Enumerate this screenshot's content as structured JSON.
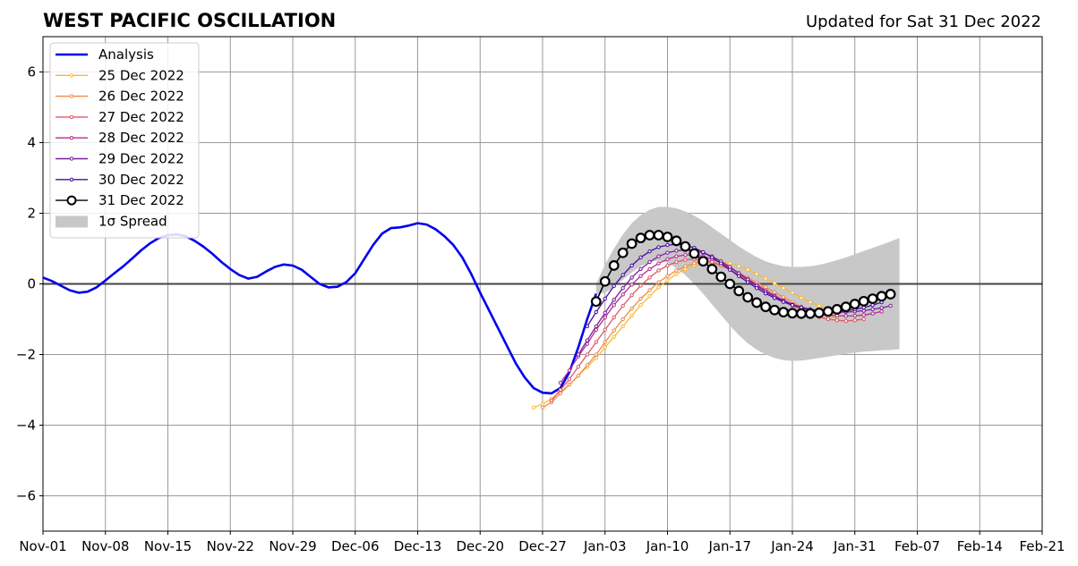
{
  "header": {
    "title": "WEST PACIFIC OSCILLATION",
    "updated": "Updated for Sat 31 Dec 2022"
  },
  "chart_data": {
    "type": "line",
    "title": "WEST PACIFIC OSCILLATION",
    "xlabel": "",
    "ylabel": "",
    "xlim": [
      "2022-11-01",
      "2023-02-21"
    ],
    "ylim": [
      -7,
      7
    ],
    "grid": true,
    "legend_position": "top-left",
    "x_tick_labels": [
      "Nov-01",
      "Nov-08",
      "Nov-15",
      "Nov-22",
      "Nov-29",
      "Dec-06",
      "Dec-13",
      "Dec-20",
      "Dec-27",
      "Jan-03",
      "Jan-10",
      "Jan-17",
      "Jan-24",
      "Jan-31",
      "Feb-07",
      "Feb-14",
      "Feb-21"
    ],
    "y_ticks": [
      -6,
      -4,
      -2,
      0,
      2,
      4,
      6
    ],
    "y_tick_labels": [
      "−6",
      "−4",
      "−2",
      "0",
      "2",
      "4",
      "6"
    ],
    "analysis": {
      "name": "Analysis",
      "color": "#0000ee",
      "start": "2022-11-01",
      "values": [
        0.18,
        0.08,
        -0.05,
        -0.18,
        -0.25,
        -0.22,
        -0.1,
        0.1,
        0.3,
        0.5,
        0.72,
        0.95,
        1.15,
        1.3,
        1.38,
        1.4,
        1.35,
        1.22,
        1.05,
        0.85,
        0.62,
        0.42,
        0.25,
        0.15,
        0.2,
        0.35,
        0.48,
        0.55,
        0.52,
        0.4,
        0.2,
        0.0,
        -0.1,
        -0.08,
        0.05,
        0.3,
        0.7,
        1.1,
        1.42,
        1.58,
        1.6,
        1.65,
        1.72,
        1.68,
        1.55,
        1.35,
        1.1,
        0.75,
        0.28,
        -0.25,
        -0.75,
        -1.25,
        -1.75,
        -2.25,
        -2.65,
        -2.95,
        -3.08,
        -3.1,
        -2.95,
        -2.5,
        -1.8,
        -1.0,
        -0.28
      ]
    },
    "forecasts": [
      {
        "name": "25 Dec 2022",
        "color": "#fbb934",
        "start": "2022-12-26",
        "values": [
          -3.5,
          -3.4,
          -3.25,
          -3.05,
          -2.85,
          -2.6,
          -2.35,
          -2.1,
          -1.8,
          -1.5,
          -1.2,
          -0.9,
          -0.6,
          -0.35,
          -0.1,
          0.1,
          0.28,
          0.42,
          0.52,
          0.58,
          0.62,
          0.62,
          0.58,
          0.5,
          0.4,
          0.28,
          0.15,
          0.02,
          -0.12,
          -0.25,
          -0.4,
          -0.52,
          -0.62,
          -0.7,
          -0.75
        ]
      },
      {
        "name": "26 Dec 2022",
        "color": "#f28a46",
        "start": "2022-12-27",
        "values": [
          -3.5,
          -3.35,
          -3.1,
          -2.85,
          -2.6,
          -2.3,
          -2.0,
          -1.65,
          -1.32,
          -1.0,
          -0.7,
          -0.42,
          -0.18,
          0.05,
          0.22,
          0.38,
          0.5,
          0.58,
          0.62,
          0.6,
          0.55,
          0.45,
          0.32,
          0.18,
          0.04,
          -0.1,
          -0.24,
          -0.38,
          -0.52,
          -0.64,
          -0.76,
          -0.86,
          -0.92,
          -0.95
        ]
      },
      {
        "name": "27 Dec 2022",
        "color": "#dc5a68",
        "start": "2022-12-28",
        "values": [
          -3.3,
          -3.0,
          -2.7,
          -2.35,
          -2.0,
          -1.65,
          -1.3,
          -0.95,
          -0.62,
          -0.32,
          -0.05,
          0.18,
          0.38,
          0.52,
          0.62,
          0.68,
          0.7,
          0.68,
          0.62,
          0.52,
          0.4,
          0.26,
          0.1,
          -0.05,
          -0.2,
          -0.35,
          -0.5,
          -0.62,
          -0.74,
          -0.85,
          -0.94,
          -1.0,
          -1.03,
          -1.05,
          -1.03,
          -1.0
        ]
      },
      {
        "name": "28 Dec 2022",
        "color": "#b52e8c",
        "start": "2022-12-29",
        "values": [
          -2.8,
          -2.45,
          -2.05,
          -1.7,
          -1.3,
          -0.95,
          -0.6,
          -0.3,
          -0.02,
          0.22,
          0.42,
          0.58,
          0.7,
          0.78,
          0.82,
          0.82,
          0.78,
          0.7,
          0.6,
          0.46,
          0.3,
          0.14,
          -0.02,
          -0.18,
          -0.33,
          -0.46,
          -0.58,
          -0.68,
          -0.76,
          -0.82,
          -0.87,
          -0.9,
          -0.91,
          -0.9,
          -0.88,
          -0.84,
          -0.78
        ]
      },
      {
        "name": "29 Dec 2022",
        "color": "#7d1ea0",
        "start": "2022-12-31",
        "values": [
          -2.0,
          -1.6,
          -1.2,
          -0.82,
          -0.45,
          -0.12,
          0.18,
          0.42,
          0.62,
          0.78,
          0.88,
          0.94,
          0.96,
          0.94,
          0.88,
          0.78,
          0.64,
          0.48,
          0.3,
          0.12,
          -0.06,
          -0.22,
          -0.36,
          -0.48,
          -0.58,
          -0.66,
          -0.72,
          -0.76,
          -0.79,
          -0.8,
          -0.8,
          -0.78,
          -0.76,
          -0.72,
          -0.68,
          -0.62
        ]
      },
      {
        "name": "30 Dec 2022",
        "color": "#4a0c9e",
        "start": "2023-01-01",
        "values": [
          -1.2,
          -0.8,
          -0.42,
          -0.06,
          0.25,
          0.52,
          0.75,
          0.92,
          1.04,
          1.1,
          1.12,
          1.1,
          1.02,
          0.9,
          0.75,
          0.58,
          0.4,
          0.22,
          0.05,
          -0.12,
          -0.27,
          -0.4,
          -0.51,
          -0.6,
          -0.67,
          -0.72,
          -0.76,
          -0.78,
          -0.78,
          -0.76,
          -0.72,
          -0.67,
          -0.6,
          -0.52
        ]
      },
      {
        "name": "31 Dec 2022",
        "color": "#000000",
        "start": "2023-01-02",
        "values": [
          -0.5,
          0.07,
          0.52,
          0.88,
          1.14,
          1.3,
          1.38,
          1.38,
          1.33,
          1.22,
          1.06,
          0.86,
          0.64,
          0.42,
          0.2,
          0.0,
          -0.2,
          -0.38,
          -0.53,
          -0.65,
          -0.74,
          -0.8,
          -0.83,
          -0.84,
          -0.84,
          -0.82,
          -0.78,
          -0.72,
          -0.65,
          -0.57,
          -0.49,
          -0.42,
          -0.35,
          -0.29
        ]
      }
    ],
    "spread": {
      "name": "1σ Spread",
      "color": "#c8c8c8",
      "start": "2023-01-02",
      "upper": [
        0.0,
        0.55,
        1.0,
        1.4,
        1.72,
        1.95,
        2.1,
        2.18,
        2.18,
        2.14,
        2.05,
        1.93,
        1.78,
        1.6,
        1.42,
        1.24,
        1.06,
        0.9,
        0.76,
        0.64,
        0.56,
        0.5,
        0.48,
        0.48,
        0.5,
        0.54,
        0.6,
        0.67,
        0.75,
        0.84,
        0.93,
        1.02,
        1.11,
        1.2,
        1.3
      ],
      "lower": [
        -0.3,
        -0.25,
        -0.1,
        0.12,
        0.32,
        0.5,
        0.62,
        0.66,
        0.6,
        0.45,
        0.25,
        0.0,
        -0.28,
        -0.58,
        -0.88,
        -1.18,
        -1.45,
        -1.68,
        -1.86,
        -2.0,
        -2.1,
        -2.16,
        -2.18,
        -2.17,
        -2.14,
        -2.1,
        -2.06,
        -2.02,
        -1.98,
        -1.95,
        -1.92,
        -1.9,
        -1.88,
        -1.87,
        -1.85
      ]
    }
  }
}
